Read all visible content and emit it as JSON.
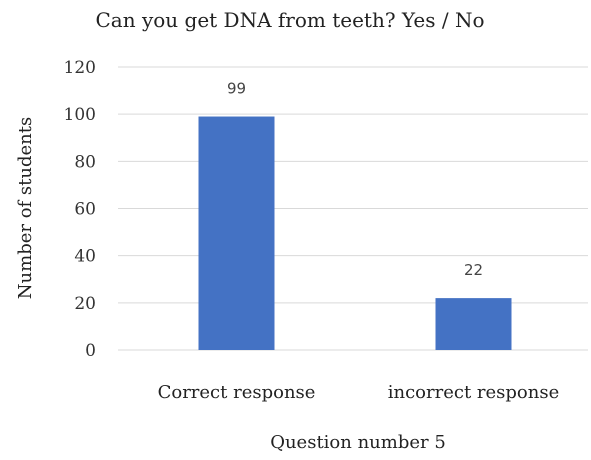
{
  "chart_data": {
    "type": "bar",
    "title": "Can you get DNA from teeth? Yes / No",
    "xlabel": "Question number 5",
    "ylabel": "Number of students",
    "categories": [
      "Correct response",
      "incorrect response"
    ],
    "values": [
      99,
      22
    ],
    "data_labels": [
      "99",
      "22"
    ],
    "ylim": [
      0,
      120
    ],
    "yticks": [
      0,
      20,
      40,
      60,
      80,
      100,
      120
    ],
    "ytick_labels": [
      "0",
      "20",
      "40",
      "60",
      "80",
      "100",
      "120"
    ],
    "grid": true,
    "legend": "none",
    "bar_color": "#4472C4",
    "grid_color": "#D9D9D9"
  }
}
